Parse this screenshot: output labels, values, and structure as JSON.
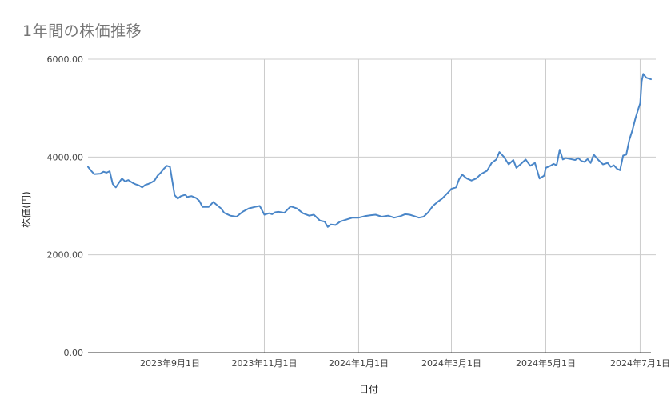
{
  "chart_data": {
    "type": "line",
    "title": "1年間の株価推移",
    "xlabel": "日付",
    "ylabel": "株価(円)",
    "ylim": [
      0,
      6000
    ],
    "y_ticks": [
      "0.00",
      "2000.00",
      "4000.00",
      "6000.00"
    ],
    "y_tick_values": [
      0,
      2000,
      4000,
      6000
    ],
    "grid": true,
    "legend": "none",
    "line_color": "#4a86c8",
    "x_range": [
      "2023-07-10",
      "2024-07-08"
    ],
    "x_ticks": [
      {
        "date": "2023-09-01",
        "label": "2023年9月1日"
      },
      {
        "date": "2023-11-01",
        "label": "2023年11月1日"
      },
      {
        "date": "2024-01-01",
        "label": "2024年1月1日"
      },
      {
        "date": "2024-03-01",
        "label": "2024年3月1日"
      },
      {
        "date": "2024-05-01",
        "label": "2024年5月1日"
      },
      {
        "date": "2024-07-01",
        "label": "2024年7月1日"
      }
    ],
    "series": [
      {
        "x": [
          "2023-07-10",
          "2023-07-12",
          "2023-07-14",
          "2023-07-18",
          "2023-07-20",
          "2023-07-22",
          "2023-07-24",
          "2023-07-26",
          "2023-07-28",
          "2023-07-31",
          "2023-08-01",
          "2023-08-03",
          "2023-08-05",
          "2023-08-08",
          "2023-08-10",
          "2023-08-12",
          "2023-08-14",
          "2023-08-16",
          "2023-08-18",
          "2023-08-20",
          "2023-08-22",
          "2023-08-24",
          "2023-08-26",
          "2023-08-28",
          "2023-08-30",
          "2023-09-01",
          "2023-09-04",
          "2023-09-06",
          "2023-09-08",
          "2023-09-11",
          "2023-09-12",
          "2023-09-13",
          "2023-09-15",
          "2023-09-18",
          "2023-09-20",
          "2023-09-22",
          "2023-09-26",
          "2023-09-29",
          "2023-10-02",
          "2023-10-04",
          "2023-10-06",
          "2023-10-10",
          "2023-10-14",
          "2023-10-18",
          "2023-10-22",
          "2023-10-26",
          "2023-10-29",
          "2023-11-01",
          "2023-11-04",
          "2023-11-06",
          "2023-11-08",
          "2023-11-10",
          "2023-11-14",
          "2023-11-18",
          "2023-11-22",
          "2023-11-26",
          "2023-11-30",
          "2023-12-03",
          "2023-12-07",
          "2023-12-10",
          "2023-12-12",
          "2023-12-14",
          "2023-12-17",
          "2023-12-20",
          "2023-12-24",
          "2023-12-28",
          "2024-01-01",
          "2024-01-05",
          "2024-01-09",
          "2024-01-12",
          "2024-01-16",
          "2024-01-20",
          "2024-01-24",
          "2024-01-28",
          "2024-01-31",
          "2024-02-03",
          "2024-02-06",
          "2024-02-09",
          "2024-02-12",
          "2024-02-15",
          "2024-02-18",
          "2024-02-21",
          "2024-02-24",
          "2024-02-28",
          "2024-03-01",
          "2024-03-04",
          "2024-03-06",
          "2024-03-08",
          "2024-03-11",
          "2024-03-14",
          "2024-03-17",
          "2024-03-20",
          "2024-03-24",
          "2024-03-27",
          "2024-03-30",
          "2024-04-01",
          "2024-04-04",
          "2024-04-07",
          "2024-04-10",
          "2024-04-12",
          "2024-04-15",
          "2024-04-18",
          "2024-04-21",
          "2024-04-24",
          "2024-04-27",
          "2024-04-30",
          "2024-05-01",
          "2024-05-04",
          "2024-05-06",
          "2024-05-08",
          "2024-05-10",
          "2024-05-12",
          "2024-05-14",
          "2024-05-17",
          "2024-05-20",
          "2024-05-22",
          "2024-05-24",
          "2024-05-26",
          "2024-05-28",
          "2024-05-30",
          "2024-06-01",
          "2024-06-04",
          "2024-06-07",
          "2024-06-10",
          "2024-06-12",
          "2024-06-14",
          "2024-06-16",
          "2024-06-18",
          "2024-06-20",
          "2024-06-22",
          "2024-06-24",
          "2024-06-26",
          "2024-06-28",
          "2024-06-30",
          "2024-07-01",
          "2024-07-02",
          "2024-07-03",
          "2024-07-05",
          "2024-07-08"
        ],
        "y": [
          3800,
          3720,
          3650,
          3660,
          3700,
          3680,
          3710,
          3450,
          3380,
          3520,
          3560,
          3500,
          3530,
          3470,
          3440,
          3420,
          3380,
          3430,
          3450,
          3480,
          3520,
          3620,
          3680,
          3760,
          3820,
          3800,
          3220,
          3150,
          3200,
          3230,
          3180,
          3190,
          3200,
          3160,
          3100,
          2980,
          2980,
          3080,
          3000,
          2950,
          2860,
          2800,
          2780,
          2880,
          2950,
          2980,
          3000,
          2820,
          2850,
          2830,
          2870,
          2880,
          2860,
          2990,
          2950,
          2850,
          2800,
          2820,
          2700,
          2680,
          2570,
          2620,
          2610,
          2680,
          2720,
          2760,
          2760,
          2790,
          2810,
          2820,
          2780,
          2800,
          2760,
          2790,
          2830,
          2820,
          2790,
          2760,
          2780,
          2870,
          3000,
          3080,
          3150,
          3280,
          3350,
          3380,
          3550,
          3640,
          3560,
          3520,
          3560,
          3650,
          3720,
          3880,
          3950,
          4100,
          4000,
          3850,
          3940,
          3780,
          3860,
          3950,
          3820,
          3880,
          3560,
          3620,
          3780,
          3820,
          3860,
          3830,
          4150,
          3950,
          3980,
          3960,
          3940,
          3980,
          3920,
          3900,
          3960,
          3880,
          4050,
          3940,
          3850,
          3880,
          3800,
          3830,
          3760,
          3730,
          4030,
          4050,
          4350,
          4550,
          4800,
          5000,
          5100,
          5550,
          5700,
          5620,
          5590
        ]
      }
    ]
  }
}
